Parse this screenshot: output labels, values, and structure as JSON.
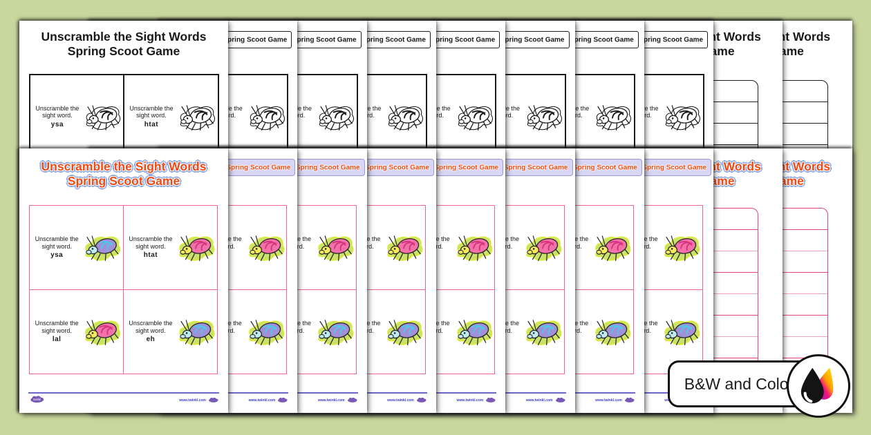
{
  "app": {
    "type": "printable-resource-preview",
    "background": "#c8d79e"
  },
  "badge": {
    "label": "B&W and Color",
    "icon": "ink-drops-icon"
  },
  "worksheet": {
    "title_line1": "Unscramble the Sight Words",
    "title_line2": "Spring Scoot Game",
    "compact_header": "Unscramble the Sight Words Spring Scoot Game",
    "card_prompt_line1": "Unscramble the",
    "card_prompt_line2": "sight word.",
    "cards": [
      {
        "word": "ysa",
        "bug": "blue"
      },
      {
        "word": "htat",
        "bug": "pink"
      },
      {
        "word": "lal",
        "bug": "pink"
      },
      {
        "word": "eh",
        "bug": "blue"
      }
    ],
    "answer_sheet_rows": 8,
    "footer": {
      "brand": "twinkl",
      "website": "www.twinkl.com"
    }
  },
  "rows": [
    {
      "name": "black-and-white",
      "variant": "bw",
      "card_pages": 8,
      "answer_pages": 2
    },
    {
      "name": "color",
      "variant": "color",
      "card_pages": 8,
      "answer_pages": 2
    }
  ],
  "colors": {
    "background_green": "#c8d79e",
    "bw_ink": "#1a1a1a",
    "title_orange": "#f04912",
    "title_outline_blue": "#88a6e0",
    "card_border_pink": "#f0609c",
    "header_band_lavender": "#d8d6f4",
    "header_band_border": "#9b97d9",
    "footer_rule_blue": "#6a66cc",
    "table_line_dark_pink": "#e8447c",
    "table_line_light_pink": "#f2a2c4",
    "bug_green_splotch": "#cbe26a",
    "bug_splotch_edge": "#dbe93f",
    "bug_pink": "#f271a8",
    "bug_pink_dark": "#d63380",
    "bug_yellow": "#f5e95e",
    "bug_teal": "#4fc8e8",
    "bug_purple": "#a18fd8",
    "bug_head_blue": "#bfeaf2",
    "drop_black": "#141414",
    "logo_purple": "#7a58b8"
  }
}
